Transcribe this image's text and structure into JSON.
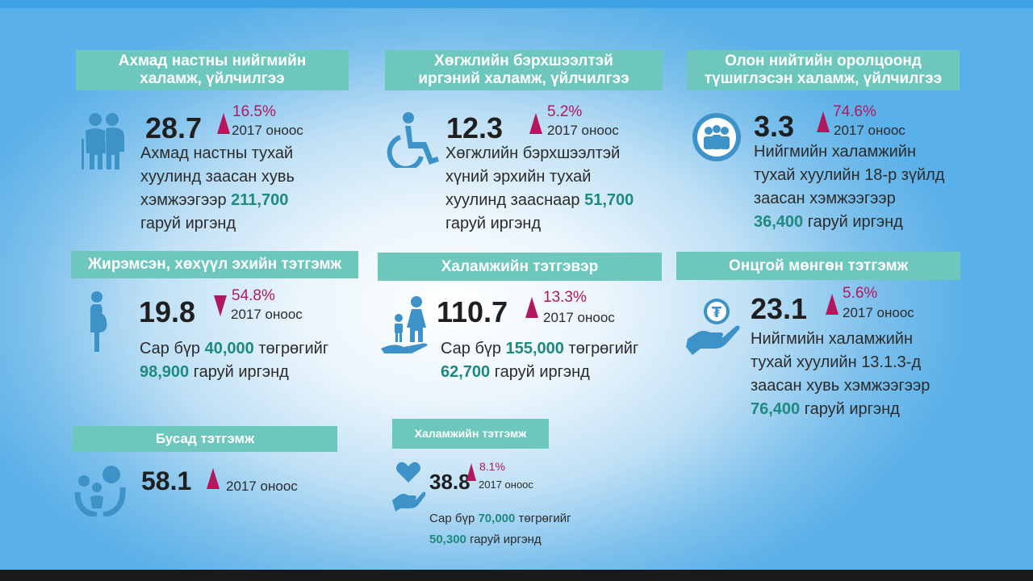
{
  "background": {
    "accent": "#6ec7bd",
    "highlight": "#1e8a7e",
    "arrow": "#b2175f",
    "icon": "#3d93c8"
  },
  "cards": [
    {
      "title_line1": "Ахмад настны нийгмийн",
      "title_line2": "халамж, үйлчилгээ",
      "icon": "elderly-couple-icon",
      "value": "28.7",
      "trend": "up",
      "pct": "16.5%",
      "since": "2017 оноос",
      "desc_line1": "Ахмад настны тухай",
      "desc_line2": "хуулинд заасан хувь",
      "desc_line3_text": "хэмжээгээр",
      "desc_line3_hl": "211,700",
      "desc_line4": "гаруй иргэнд"
    },
    {
      "title_line1": "Хөгжлийн бэрхшээлтэй",
      "title_line2": "иргэний халамж, үйлчилгээ",
      "icon": "wheelchair-icon",
      "value": "12.3",
      "trend": "up",
      "pct": "5.2%",
      "since": "2017 оноос",
      "desc_line1": "Хөгжлийн бэрхшээлтэй",
      "desc_line2": "хүний эрхийн тухай",
      "desc_line3_text": "хуулинд зааснаар",
      "desc_line3_hl": "51,700",
      "desc_line4": "гаруй иргэнд"
    },
    {
      "title_line1": "Олон нийтийн оролцоонд",
      "title_line2": "түшиглэсэн халамж, үйлчилгээ",
      "icon": "community-group-icon",
      "value": "3.3",
      "trend": "up",
      "pct": "74.6%",
      "since": "2017 оноос",
      "desc_line1": "Нийгмийн халамжийн",
      "desc_line2": "тухай хуулийн 18-р зүйлд",
      "desc_line3": "заасан хэмжээгээр",
      "desc_line4_hl": "36,400",
      "desc_line4_text": "гаруй иргэнд"
    },
    {
      "title": "Жирэмсэн, хөхүүл эхийн тэтгэмж",
      "icon": "pregnant-woman-icon",
      "value": "19.8",
      "trend": "down",
      "pct": "54.8%",
      "since": "2017 оноос",
      "desc_line1_text": "Сар бүр",
      "desc_line1_hl": "40,000",
      "desc_line1_tail": "төгрөгийг",
      "desc_line2_hl": "98,900",
      "desc_line2_text": "гаруй иргэнд"
    },
    {
      "title": "Халамжийн тэтгэвэр",
      "icon": "family-hand-icon",
      "value": "110.7",
      "trend": "up",
      "pct": "13.3%",
      "since": "2017 оноос",
      "desc_line1_text": "Сар бүр",
      "desc_line1_hl": "155,000",
      "desc_line1_tail": "төгрөгийг",
      "desc_line2_hl": "62,700",
      "desc_line2_text": "гаруй иргэнд"
    },
    {
      "title": "Онцгой мөнгөн тэтгэмж",
      "icon": "coin-hand-icon",
      "value": "23.1",
      "trend": "up",
      "pct": "5.6%",
      "since": "2017 оноос",
      "desc_line1": "Нийгмийн халамжийн",
      "desc_line2": "тухай хуулийн 13.1.3-д",
      "desc_line3": "заасан хувь хэмжээгээр",
      "desc_line4_hl": "76,400",
      "desc_line4_text": "гаруй иргэнд"
    },
    {
      "title": "Бусад тэтгэмж",
      "icon": "family-circle-icon",
      "value": "58.1",
      "trend": "up",
      "since": "2017 оноос"
    },
    {
      "title": "Халамжийн тэтгэмж",
      "icon": "heart-hand-icon",
      "value": "38.8",
      "trend": "up",
      "pct": "8.1%",
      "since": "2017 оноос",
      "desc_line1_text": "Сар бүр",
      "desc_line1_hl": "70,000",
      "desc_line1_tail": "төгрөгийг",
      "desc_line2_hl": "50,300",
      "desc_line2_text": "гаруй иргэнд"
    }
  ]
}
